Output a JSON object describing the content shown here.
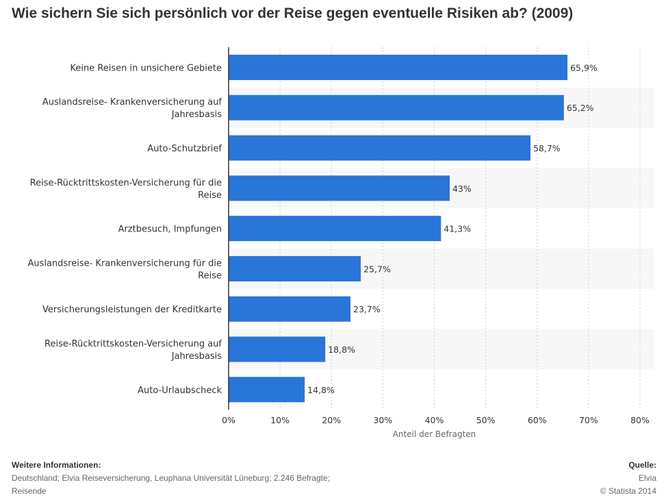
{
  "chart_data": {
    "type": "bar",
    "orientation": "horizontal",
    "title": "Wie sichern Sie sich persönlich vor der Reise gegen eventuelle Risiken ab? (2009)",
    "categories": [
      "Keine Reisen in unsichere Gebiete",
      "Auslandsreise- Krankenversicherung auf Jahresbasis",
      "Auto-Schutzbrief",
      "Reise-Rücktrittskosten-Versicherung für die Reise",
      "Arztbesuch, Impfungen",
      "Auslandsreise- Krankenversicherung für die Reise",
      "Versicherungsleistungen der Kreditkarte",
      "Reise-Rücktrittskosten-Versicherung auf Jahresbasis",
      "Auto-Urlaubscheck"
    ],
    "values": [
      65.9,
      65.2,
      58.7,
      43,
      41.3,
      25.7,
      23.7,
      18.8,
      14.8
    ],
    "value_labels": [
      "65,9%",
      "65,2%",
      "58,7%",
      "43%",
      "41,3%",
      "25,7%",
      "23,7%",
      "18,8%",
      "14,8%"
    ],
    "xlabel": "Anteil der Befragten",
    "xlim": [
      0,
      80
    ],
    "ticks": [
      "0%",
      "10%",
      "20%",
      "30%",
      "40%",
      "50%",
      "60%",
      "70%",
      "80%"
    ],
    "grid": true,
    "bar_color": "#2a75d8"
  },
  "footer": {
    "info_heading": "Weitere Informationen:",
    "info_text": "Deutschland; Elvia Reiseversicherung, Leuphana Universität Lüneburg; 2.246 Befragte; Reisende",
    "source_heading": "Quelle:",
    "source_text": "Elvia",
    "copyright": "© Statista 2014"
  }
}
